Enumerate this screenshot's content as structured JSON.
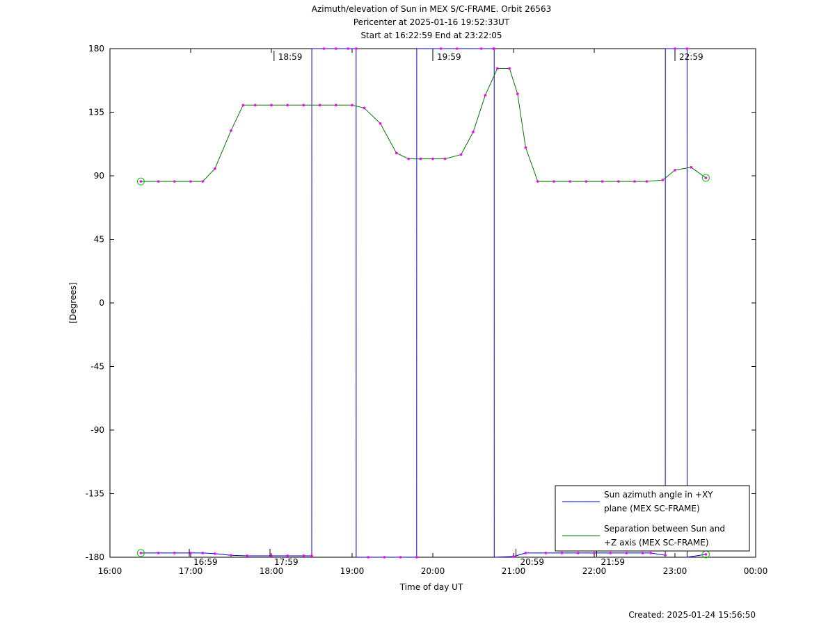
{
  "chart_data": {
    "type": "line",
    "title_lines": [
      "Azimuth/elevation of Sun in MEX S/C-FRAME.  Orbit 26563",
      "Pericenter at 2025-01-16 19:52:33UT",
      "Start at 16:22:59 End at 23:22:05"
    ],
    "xlabel": "Time of day UT",
    "ylabel": "[Degrees]",
    "xlim": [
      16.0,
      24.0
    ],
    "ylim": [
      -180,
      180
    ],
    "x_ticks": [
      {
        "v": 16,
        "label": "16:00"
      },
      {
        "v": 17,
        "label": "17:00"
      },
      {
        "v": 18,
        "label": "18:00"
      },
      {
        "v": 19,
        "label": "19:00"
      },
      {
        "v": 20,
        "label": "20:00"
      },
      {
        "v": 21,
        "label": "21:00"
      },
      {
        "v": 22,
        "label": "22:00"
      },
      {
        "v": 23,
        "label": "23:00"
      },
      {
        "v": 24,
        "label": "00:00"
      }
    ],
    "y_ticks": [
      {
        "v": 180,
        "label": "180"
      },
      {
        "v": 135,
        "label": "135"
      },
      {
        "v": 90,
        "label": "90"
      },
      {
        "v": 45,
        "label": "45"
      },
      {
        "v": 0,
        "label": "0"
      },
      {
        "v": -45,
        "label": "-45"
      },
      {
        "v": -90,
        "label": "-90"
      },
      {
        "v": -135,
        "label": "-135"
      },
      {
        "v": -180,
        "label": "-180"
      }
    ],
    "grid": false,
    "legend_position": "bottom-right",
    "time_markers": [
      {
        "x": 16.983,
        "label": "16:59",
        "edge": "bottom"
      },
      {
        "x": 17.983,
        "label": "17:59",
        "edge": "bottom"
      },
      {
        "x": 18.033,
        "label": "18:59",
        "edge": "top"
      },
      {
        "x": 20.0,
        "label": "19:59",
        "edge": "top"
      },
      {
        "x": 21.03,
        "label": "20:59",
        "edge": "bottom"
      },
      {
        "x": 22.03,
        "label": "21:59",
        "edge": "bottom"
      },
      {
        "x": 23.0,
        "label": "22:59",
        "edge": "top"
      }
    ],
    "series": [
      {
        "name": "Sun azimuth angle in +XY plane (MEX SC-FRAME)",
        "legend_lines": [
          "Sun azimuth angle in +XY",
          "plane (MEX SC-FRAME)"
        ],
        "color": "#0000cc",
        "x": [
          16.383,
          16.6,
          16.8,
          17.0,
          17.15,
          17.3,
          17.5,
          17.7,
          18.0,
          18.2,
          18.4,
          18.5,
          18.501,
          18.65,
          18.8,
          18.95,
          19.05,
          19.051,
          19.2,
          19.4,
          19.6,
          19.8,
          19.801,
          20.1,
          20.3,
          20.6,
          20.75,
          20.76,
          20.761,
          21.0,
          21.15,
          21.4,
          21.6,
          21.8,
          22.0,
          22.2,
          22.4,
          22.6,
          22.7,
          22.88,
          22.881,
          23.0,
          23.15,
          23.151,
          23.383
        ],
        "y": [
          -177,
          -177,
          -177,
          -177,
          -177,
          -177.5,
          -178.6,
          -179,
          -179,
          -179,
          -179,
          -179,
          180,
          180,
          180,
          180,
          180,
          -180,
          -180,
          -180,
          -180,
          -180,
          180,
          180,
          180,
          180,
          180,
          180,
          -180,
          -179.5,
          -177,
          -177,
          -177,
          -177,
          -177,
          -177,
          -177,
          -177,
          -177,
          -178.6,
          180,
          180,
          180,
          -180,
          -178
        ]
      },
      {
        "name": "Separation between Sun and +Z axis (MEX SC-FRAME)",
        "legend_lines": [
          "Separation between Sun and",
          "+Z axis (MEX SC-FRAME)"
        ],
        "color": "#007700",
        "x": [
          16.383,
          16.6,
          16.8,
          17.0,
          17.15,
          17.3,
          17.5,
          17.65,
          17.8,
          18.0,
          18.2,
          18.4,
          18.6,
          18.8,
          19.0,
          19.15,
          19.35,
          19.55,
          19.7,
          19.85,
          20.0,
          20.15,
          20.35,
          20.5,
          20.65,
          20.8,
          20.95,
          21.05,
          21.15,
          21.3,
          21.5,
          21.7,
          21.9,
          22.1,
          22.3,
          22.5,
          22.65,
          22.85,
          23.0,
          23.2,
          23.383
        ],
        "y": [
          86,
          86,
          86,
          86,
          86,
          95,
          122,
          140,
          140,
          140,
          140,
          140,
          140,
          140,
          140,
          138,
          127,
          106,
          102,
          102,
          102,
          102,
          105,
          121,
          147,
          166,
          166,
          148,
          110,
          86,
          86,
          86,
          86,
          86,
          86,
          86,
          86,
          87,
          94,
          96,
          88.5
        ]
      }
    ]
  },
  "footer": {
    "created": "Created: 2025-01-24 15:56:50"
  }
}
